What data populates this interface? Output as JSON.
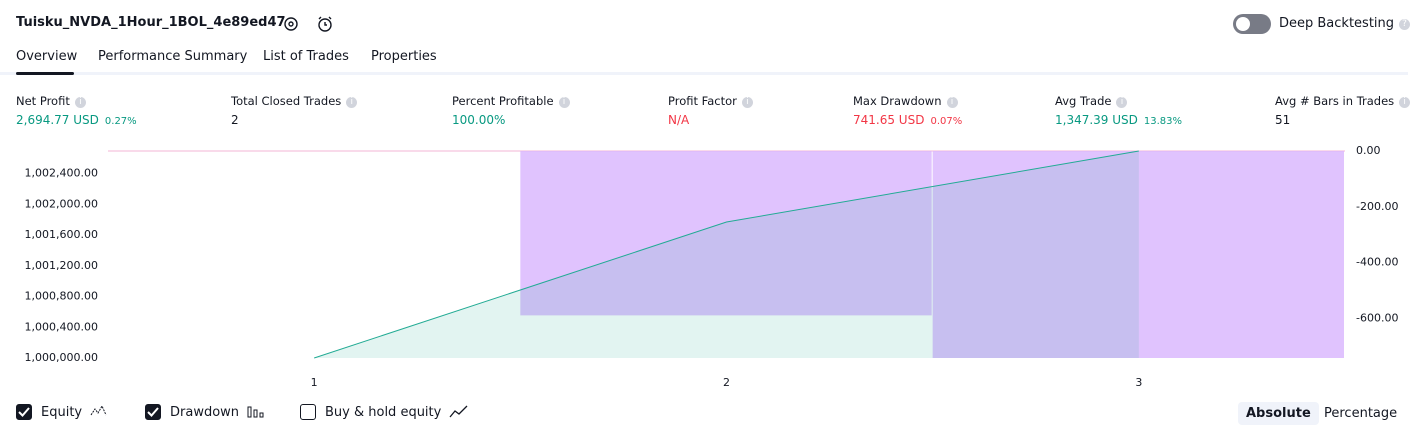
{
  "header": {
    "title": "Tuisku_NVDA_1Hour_1BOL_4e89ed47",
    "deep_backtesting": "Deep Backtesting"
  },
  "tabs": [
    "Overview",
    "Performance Summary",
    "List of Trades",
    "Properties"
  ],
  "metrics": [
    {
      "label": "Net Profit",
      "value": "2,694.77 USD",
      "change": "0.27%",
      "color": "#089981"
    },
    {
      "label": "Total Closed Trades",
      "value": "2",
      "color": "#131722"
    },
    {
      "label": "Percent Profitable",
      "value": "100.00%",
      "color": "#089981"
    },
    {
      "label": "Profit Factor",
      "value": "N/A",
      "color": "#f23645"
    },
    {
      "label": "Max Drawdown",
      "value": "741.65 USD",
      "change": "0.07%",
      "color": "#f23645"
    },
    {
      "label": "Avg Trade",
      "value": "1,347.39 USD",
      "change": "13.83%",
      "color": "#089981"
    },
    {
      "label": "Avg # Bars in Trades",
      "value": "51",
      "color": "#131722"
    }
  ],
  "chart_data": {
    "type": "line",
    "x": [
      1,
      2,
      3
    ],
    "xlim": [
      0.5,
      3.5
    ],
    "xticks": [
      1,
      2,
      3
    ],
    "ylim": [
      1000000,
      1002694.77
    ],
    "yticks": [
      {
        "value": 1000000,
        "label": "1,000,000.00"
      },
      {
        "value": 1000400,
        "label": "1,000,400.00"
      },
      {
        "value": 1000800,
        "label": "1,000,800.00"
      },
      {
        "value": 1001200,
        "label": "1,001,200.00"
      },
      {
        "value": 1001600,
        "label": "1,001,600.00"
      },
      {
        "value": 1002000,
        "label": "1,002,000.00"
      },
      {
        "value": 1002400,
        "label": "1,002,400.00"
      }
    ],
    "y2lim": [
      -741.65,
      0
    ],
    "y2ticks": [
      {
        "value": 0,
        "label": "0.00"
      },
      {
        "value": -200,
        "label": "-200.00"
      },
      {
        "value": -400,
        "label": "-400.00"
      },
      {
        "value": -600,
        "label": "-600.00"
      }
    ],
    "series": [
      {
        "name": "Drawdown",
        "type": "bar",
        "axis": "y2",
        "color": "#d8b4fe",
        "values": [
          0,
          -589,
          -741.65
        ]
      },
      {
        "name": "Equity",
        "type": "line",
        "color": "#22ab94",
        "values": [
          1000000,
          1001770,
          1002694.77
        ]
      }
    ]
  },
  "footer": {
    "checkboxes": [
      {
        "label": "Equity",
        "checked": true
      },
      {
        "label": "Drawdown",
        "checked": true
      },
      {
        "label": "Buy & hold equity",
        "checked": false
      }
    ],
    "modes": [
      {
        "label": "Absolute",
        "active": true
      },
      {
        "label": "Percentage",
        "active": false
      }
    ]
  }
}
